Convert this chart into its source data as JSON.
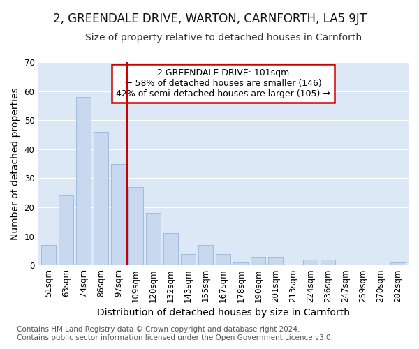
{
  "title": "2, GREENDALE DRIVE, WARTON, CARNFORTH, LA5 9JT",
  "subtitle": "Size of property relative to detached houses in Carnforth",
  "xlabel": "Distribution of detached houses by size in Carnforth",
  "ylabel": "Number of detached properties",
  "categories": [
    "51sqm",
    "63sqm",
    "74sqm",
    "86sqm",
    "97sqm",
    "109sqm",
    "120sqm",
    "132sqm",
    "143sqm",
    "155sqm",
    "167sqm",
    "178sqm",
    "190sqm",
    "201sqm",
    "213sqm",
    "224sqm",
    "236sqm",
    "247sqm",
    "259sqm",
    "270sqm",
    "282sqm"
  ],
  "values": [
    7,
    24,
    58,
    46,
    35,
    27,
    18,
    11,
    4,
    7,
    4,
    1,
    3,
    3,
    0,
    2,
    2,
    0,
    0,
    0,
    1
  ],
  "bar_color": "#c8d8ee",
  "bar_edge_color": "#8aafd4",
  "vline_x": 4.5,
  "annotation_text": "2 GREENDALE DRIVE: 101sqm\n← 58% of detached houses are smaller (146)\n42% of semi-detached houses are larger (105) →",
  "annotation_box_color": "#ffffff",
  "annotation_box_edge_color": "#cc0000",
  "vline_color": "#cc0000",
  "ylim": [
    0,
    70
  ],
  "yticks": [
    0,
    10,
    20,
    30,
    40,
    50,
    60,
    70
  ],
  "footer_line1": "Contains HM Land Registry data © Crown copyright and database right 2024.",
  "footer_line2": "Contains public sector information licensed under the Open Government Licence v3.0.",
  "fig_bg_color": "#ffffff",
  "plot_bg_color": "#dce8f5",
  "grid_color": "#ffffff",
  "title_fontsize": 12,
  "subtitle_fontsize": 10,
  "axis_label_fontsize": 10,
  "tick_fontsize": 8.5,
  "footer_fontsize": 7.5,
  "annotation_fontsize": 9
}
